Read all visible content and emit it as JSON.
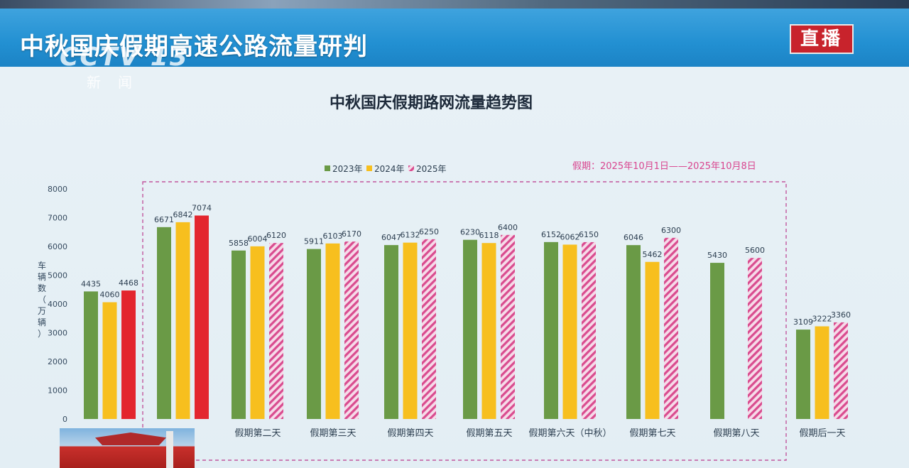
{
  "banner": {
    "title": "中秋国庆假期高速公路流量研判"
  },
  "badge": {
    "live": "直播"
  },
  "logo": {
    "main": "CCTV 13",
    "sub": "新闻"
  },
  "chart_data": {
    "type": "bar",
    "title": "中秋国庆假期路网流量趋势图",
    "ylabel": "车辆数（万辆）",
    "ylim": [
      0,
      8000
    ],
    "yticks": [
      0,
      1000,
      2000,
      3000,
      4000,
      5000,
      6000,
      7000,
      8000
    ],
    "legend_position": "top-center",
    "note": "假期：2025年10月1日——2025年10月8日",
    "categories": [
      "",
      "天",
      "假期第二天",
      "假期第三天",
      "假期第四天",
      "假期第五天",
      "假期第六天（中秋）",
      "假期第七天",
      "假期第八天",
      "假期后一天"
    ],
    "series": [
      {
        "name": "2023年",
        "values": [
          4435,
          6671,
          5858,
          5911,
          6047,
          6230,
          6152,
          6046,
          5430,
          3109
        ],
        "color": "#6a9a46",
        "style": "solid"
      },
      {
        "name": "2024年",
        "values": [
          4060,
          6842,
          6004,
          6103,
          6132,
          6118,
          6062,
          5462,
          null,
          3222
        ],
        "color": "#f7bf1e",
        "style": "solid"
      },
      {
        "name": "2025年",
        "values": [
          4468,
          7074,
          6120,
          6170,
          6250,
          6400,
          6150,
          6300,
          5600,
          3360
        ],
        "color": "#e0418f",
        "style": "hatched"
      }
    ],
    "highlight": {
      "series": "2025年",
      "category_index": [
        0,
        1
      ],
      "color": "#e3262e"
    }
  }
}
